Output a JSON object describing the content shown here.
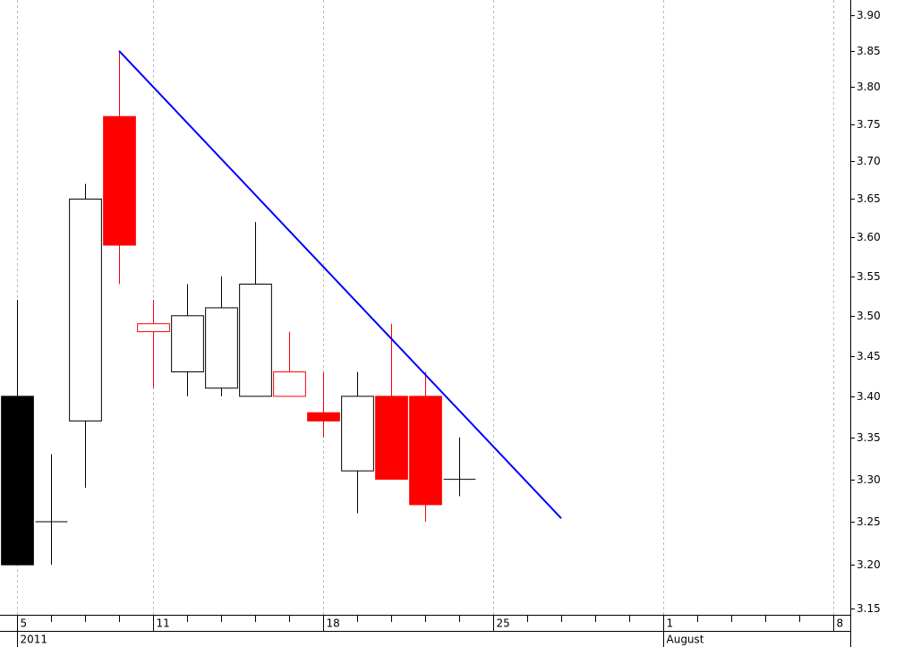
{
  "chart_data": {
    "type": "candlestick",
    "open": [
      3.4,
      3.25,
      3.37,
      3.76,
      3.48,
      3.43,
      3.41,
      3.4,
      3.4,
      3.38,
      3.31,
      3.4,
      3.4,
      3.3
    ],
    "high": [
      3.52,
      3.33,
      3.67,
      3.85,
      3.52,
      3.54,
      3.55,
      3.62,
      3.48,
      3.43,
      3.43,
      3.49,
      3.43,
      3.35
    ],
    "low": [
      3.2,
      3.2,
      3.29,
      3.54,
      3.41,
      3.4,
      3.4,
      3.4,
      3.4,
      3.35,
      3.26,
      3.3,
      3.25,
      3.28
    ],
    "close": [
      3.2,
      3.25,
      3.65,
      3.59,
      3.49,
      3.5,
      3.51,
      3.54,
      3.43,
      3.37,
      3.4,
      3.3,
      3.27,
      3.3
    ],
    "x": [
      0,
      1,
      2,
      3,
      4,
      5,
      6,
      7,
      8,
      9,
      10,
      11,
      12,
      13
    ],
    "colors": [
      "#000000",
      "#000000",
      "#000000",
      "#ff0000",
      "#ff0000",
      "#000000",
      "#000000",
      "#000000",
      "#ff0000",
      "#ff0000",
      "#000000",
      "#ff0000",
      "#ff0000",
      "#000000"
    ],
    "trendline": {
      "x": [
        3,
        16
      ],
      "values": [
        3.85,
        3.254
      ],
      "color": "#0000ff"
    },
    "xlim": [
      -0.5,
      24.5
    ],
    "xticks": [
      {
        "value": 0,
        "label": "5"
      },
      {
        "value": 4,
        "label": "11"
      },
      {
        "value": 9,
        "label": "18"
      },
      {
        "value": 14,
        "label": "25"
      },
      {
        "value": 19,
        "label": "1"
      },
      {
        "value": 24,
        "label": "8"
      }
    ],
    "period_labels": [
      {
        "value": 0,
        "label": "2011"
      },
      {
        "value": 19,
        "label": "August"
      }
    ],
    "ylim": [
      3.143,
      3.921
    ],
    "log_scale": true,
    "yticks": [
      3.15,
      {
        "value": 3.2,
        "label": "3.20"
      },
      3.25,
      {
        "value": 3.3,
        "label": "3.30"
      },
      3.35,
      {
        "value": 3.4,
        "label": "3.40"
      },
      3.45,
      {
        "value": 3.5,
        "label": "3.50"
      },
      3.55,
      {
        "value": 3.6,
        "label": "3.60"
      },
      3.65,
      {
        "value": 3.7,
        "label": "3.70"
      },
      3.75,
      {
        "value": 3.8,
        "label": "3.80"
      },
      3.85,
      {
        "value": 3.9,
        "label": "3.90"
      }
    ],
    "grid": true
  }
}
